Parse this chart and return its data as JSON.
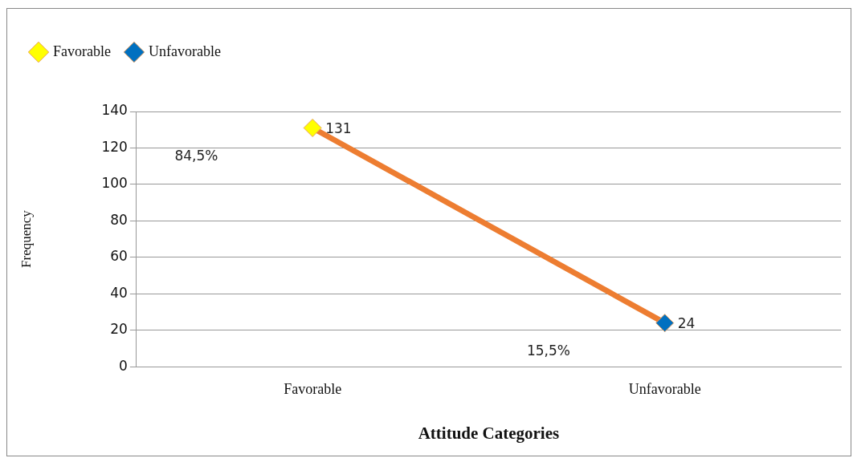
{
  "chart_data": {
    "type": "line",
    "xlabel": "Attitude Categories",
    "ylabel": "Frequency",
    "categories": [
      "Favorable",
      "Unfavorable"
    ],
    "series": [
      {
        "color": "#ed7d31",
        "values": [
          131,
          24
        ],
        "marker": "none"
      },
      {
        "name": "Favorable",
        "type": "scatter",
        "color": "#ffff00",
        "values": [
          131,
          null
        ],
        "value_labels": [
          "131",
          null
        ]
      },
      {
        "name": "Unfavorable",
        "type": "scatter",
        "color": "#0070c0",
        "values": [
          null,
          24
        ],
        "value_labels": [
          null,
          "24"
        ]
      }
    ],
    "ylim": [
      0,
      140
    ],
    "yticks": [
      0,
      20,
      40,
      60,
      80,
      100,
      120,
      140
    ],
    "grid": "y",
    "legend": "top left",
    "marker": "diamond",
    "annotations": [
      "84,5%",
      "15,5%"
    ]
  }
}
